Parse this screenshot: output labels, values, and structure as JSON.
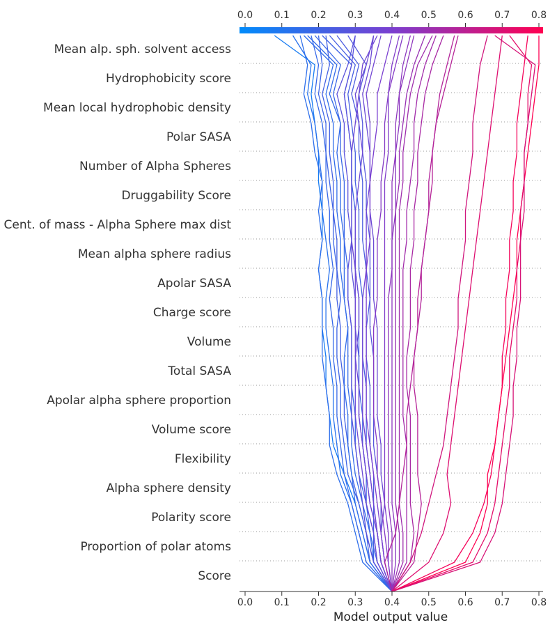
{
  "chart_data": {
    "type": "line",
    "xlabel": "Model output value",
    "xlim": [
      0.0,
      0.8
    ],
    "x_ticks": [
      "0.0",
      "0.1",
      "0.2",
      "0.3",
      "0.4",
      "0.5",
      "0.6",
      "0.7",
      "0.8"
    ],
    "features": [
      "Mean alp. sph. solvent access",
      "Hydrophobicity score",
      "Mean local hydrophobic density",
      "Polar SASA",
      "Number of Alpha Spheres",
      "Druggability Score",
      "Cent. of mass - Alpha Sphere max dist",
      "Mean alpha sphere radius",
      "Apolar SASA",
      "Charge score",
      "Volume",
      "Total SASA",
      "Apolar alpha sphere proportion",
      "Volume score",
      "Flexibility",
      "Alpha sphere density",
      "Polarity score",
      "Proportion of polar atoms",
      "Score"
    ],
    "base_value": 0.4,
    "colormap": [
      "#008bfb",
      "#ff0051"
    ],
    "grid": true,
    "series_note": "bottom-to-top cumulative model output (base at Score row end)",
    "series": [
      {
        "values": [
          0.4,
          0.34,
          0.32,
          0.3,
          0.27,
          0.24,
          0.23,
          0.22,
          0.22,
          0.21,
          0.21,
          0.2,
          0.21,
          0.21,
          0.2,
          0.2,
          0.19,
          0.18,
          0.19,
          0.08
        ]
      },
      {
        "values": [
          0.4,
          0.33,
          0.31,
          0.29,
          0.26,
          0.25,
          0.24,
          0.24,
          0.23,
          0.22,
          0.22,
          0.23,
          0.22,
          0.21,
          0.21,
          0.2,
          0.19,
          0.17,
          0.18,
          0.13
        ]
      },
      {
        "values": [
          0.4,
          0.32,
          0.3,
          0.28,
          0.25,
          0.23,
          0.23,
          0.22,
          0.21,
          0.21,
          0.21,
          0.2,
          0.21,
          0.2,
          0.21,
          0.19,
          0.18,
          0.16,
          0.17,
          0.15
        ]
      },
      {
        "values": [
          0.4,
          0.33,
          0.31,
          0.29,
          0.27,
          0.26,
          0.25,
          0.25,
          0.24,
          0.24,
          0.23,
          0.24,
          0.23,
          0.23,
          0.22,
          0.22,
          0.21,
          0.19,
          0.2,
          0.18
        ]
      },
      {
        "values": [
          0.4,
          0.35,
          0.33,
          0.31,
          0.28,
          0.27,
          0.26,
          0.26,
          0.25,
          0.25,
          0.26,
          0.25,
          0.24,
          0.24,
          0.23,
          0.22,
          0.22,
          0.2,
          0.21,
          0.2
        ]
      },
      {
        "values": [
          0.4,
          0.34,
          0.33,
          0.31,
          0.29,
          0.28,
          0.27,
          0.27,
          0.26,
          0.26,
          0.25,
          0.25,
          0.25,
          0.24,
          0.24,
          0.23,
          0.23,
          0.21,
          0.23,
          0.22
        ]
      },
      {
        "values": [
          0.4,
          0.34,
          0.32,
          0.3,
          0.29,
          0.28,
          0.28,
          0.27,
          0.27,
          0.28,
          0.27,
          0.26,
          0.26,
          0.25,
          0.25,
          0.24,
          0.24,
          0.22,
          0.24,
          0.16
        ]
      },
      {
        "values": [
          0.4,
          0.35,
          0.34,
          0.32,
          0.3,
          0.29,
          0.29,
          0.28,
          0.28,
          0.28,
          0.27,
          0.27,
          0.27,
          0.26,
          0.26,
          0.25,
          0.26,
          0.23,
          0.25,
          0.17
        ]
      },
      {
        "values": [
          0.4,
          0.36,
          0.34,
          0.33,
          0.31,
          0.3,
          0.3,
          0.29,
          0.29,
          0.29,
          0.28,
          0.28,
          0.27,
          0.27,
          0.27,
          0.26,
          0.26,
          0.24,
          0.26,
          0.19
        ]
      },
      {
        "values": [
          0.4,
          0.37,
          0.36,
          0.34,
          0.33,
          0.32,
          0.31,
          0.31,
          0.31,
          0.3,
          0.3,
          0.29,
          0.29,
          0.28,
          0.28,
          0.27,
          0.27,
          0.25,
          0.28,
          0.3
        ]
      },
      {
        "values": [
          0.4,
          0.35,
          0.35,
          0.33,
          0.33,
          0.32,
          0.32,
          0.31,
          0.31,
          0.31,
          0.31,
          0.3,
          0.3,
          0.3,
          0.29,
          0.29,
          0.28,
          0.27,
          0.29,
          0.21
        ]
      },
      {
        "values": [
          0.4,
          0.36,
          0.35,
          0.35,
          0.34,
          0.33,
          0.33,
          0.33,
          0.32,
          0.32,
          0.32,
          0.31,
          0.31,
          0.31,
          0.3,
          0.3,
          0.29,
          0.28,
          0.3,
          0.23
        ]
      },
      {
        "values": [
          0.4,
          0.37,
          0.36,
          0.35,
          0.35,
          0.34,
          0.34,
          0.34,
          0.33,
          0.33,
          0.34,
          0.33,
          0.32,
          0.32,
          0.32,
          0.31,
          0.31,
          0.29,
          0.31,
          0.25
        ]
      },
      {
        "values": [
          0.4,
          0.38,
          0.37,
          0.37,
          0.36,
          0.35,
          0.35,
          0.35,
          0.35,
          0.34,
          0.34,
          0.34,
          0.34,
          0.33,
          0.33,
          0.32,
          0.32,
          0.31,
          0.33,
          0.28
        ]
      },
      {
        "values": [
          0.4,
          0.38,
          0.37,
          0.38,
          0.37,
          0.37,
          0.36,
          0.36,
          0.36,
          0.36,
          0.35,
          0.35,
          0.35,
          0.34,
          0.34,
          0.34,
          0.33,
          0.32,
          0.34,
          0.35
        ]
      },
      {
        "values": [
          0.4,
          0.37,
          0.36,
          0.34,
          0.33,
          0.32,
          0.31,
          0.31,
          0.3,
          0.3,
          0.3,
          0.3,
          0.29,
          0.29,
          0.29,
          0.29,
          0.3,
          0.31,
          0.32,
          0.36
        ]
      },
      {
        "values": [
          0.4,
          0.35,
          0.33,
          0.32,
          0.31,
          0.3,
          0.29,
          0.29,
          0.29,
          0.29,
          0.28,
          0.28,
          0.29,
          0.29,
          0.29,
          0.29,
          0.28,
          0.27,
          0.29,
          0.3
        ]
      },
      {
        "values": [
          0.4,
          0.36,
          0.35,
          0.33,
          0.32,
          0.31,
          0.3,
          0.3,
          0.3,
          0.31,
          0.31,
          0.3,
          0.3,
          0.3,
          0.31,
          0.32,
          0.31,
          0.3,
          0.33,
          0.35
        ]
      },
      {
        "values": [
          0.4,
          0.37,
          0.36,
          0.35,
          0.34,
          0.33,
          0.32,
          0.32,
          0.32,
          0.32,
          0.32,
          0.33,
          0.33,
          0.33,
          0.34,
          0.34,
          0.34,
          0.33,
          0.35,
          0.37
        ]
      },
      {
        "values": [
          0.4,
          0.38,
          0.37,
          0.36,
          0.35,
          0.34,
          0.33,
          0.33,
          0.33,
          0.33,
          0.33,
          0.33,
          0.34,
          0.34,
          0.34,
          0.35,
          0.36,
          0.36,
          0.38,
          0.4
        ]
      },
      {
        "values": [
          0.4,
          0.39,
          0.38,
          0.37,
          0.36,
          0.36,
          0.35,
          0.35,
          0.35,
          0.35,
          0.36,
          0.36,
          0.36,
          0.37,
          0.37,
          0.38,
          0.38,
          0.39,
          0.41,
          0.43
        ]
      },
      {
        "values": [
          0.4,
          0.39,
          0.39,
          0.38,
          0.38,
          0.38,
          0.38,
          0.38,
          0.38,
          0.38,
          0.38,
          0.38,
          0.38,
          0.38,
          0.38,
          0.39,
          0.39,
          0.39,
          0.4,
          0.42
        ]
      },
      {
        "values": [
          0.4,
          0.4,
          0.4,
          0.39,
          0.39,
          0.39,
          0.39,
          0.39,
          0.39,
          0.39,
          0.39,
          0.4,
          0.4,
          0.4,
          0.4,
          0.41,
          0.41,
          0.42,
          0.44,
          0.46
        ]
      },
      {
        "values": [
          0.4,
          0.41,
          0.41,
          0.4,
          0.4,
          0.4,
          0.4,
          0.4,
          0.4,
          0.4,
          0.4,
          0.4,
          0.4,
          0.41,
          0.41,
          0.41,
          0.42,
          0.42,
          0.43,
          0.45
        ]
      },
      {
        "values": [
          0.4,
          0.42,
          0.42,
          0.41,
          0.41,
          0.41,
          0.41,
          0.41,
          0.41,
          0.41,
          0.41,
          0.41,
          0.41,
          0.41,
          0.42,
          0.42,
          0.43,
          0.44,
          0.46,
          0.49
        ]
      },
      {
        "values": [
          0.4,
          0.43,
          0.43,
          0.42,
          0.42,
          0.42,
          0.42,
          0.42,
          0.42,
          0.42,
          0.42,
          0.42,
          0.42,
          0.42,
          0.43,
          0.43,
          0.44,
          0.45,
          0.47,
          0.51
        ]
      },
      {
        "values": [
          0.4,
          0.44,
          0.44,
          0.44,
          0.44,
          0.44,
          0.43,
          0.43,
          0.43,
          0.43,
          0.43,
          0.43,
          0.44,
          0.44,
          0.45,
          0.46,
          0.46,
          0.47,
          0.49,
          0.52
        ]
      },
      {
        "values": [
          0.4,
          0.45,
          0.46,
          0.45,
          0.45,
          0.45,
          0.45,
          0.44,
          0.44,
          0.45,
          0.45,
          0.45,
          0.46,
          0.46,
          0.47,
          0.47,
          0.48,
          0.49,
          0.51,
          0.54
        ]
      },
      {
        "values": [
          0.4,
          0.46,
          0.47,
          0.48,
          0.47,
          0.47,
          0.47,
          0.46,
          0.46,
          0.47,
          0.47,
          0.48,
          0.49,
          0.5,
          0.51,
          0.51,
          0.52,
          0.54,
          0.56,
          0.58
        ]
      },
      {
        "values": [
          0.4,
          0.38,
          0.41,
          0.42,
          0.43,
          0.44,
          0.44,
          0.45,
          0.46,
          0.47,
          0.48,
          0.48,
          0.49,
          0.5,
          0.5,
          0.51,
          0.52,
          0.53,
          0.55,
          0.57
        ]
      },
      {
        "values": [
          0.4,
          0.45,
          0.48,
          0.5,
          0.52,
          0.54,
          0.55,
          0.56,
          0.57,
          0.58,
          0.58,
          0.59,
          0.6,
          0.6,
          0.61,
          0.62,
          0.62,
          0.63,
          0.64,
          0.66
        ]
      },
      {
        "values": [
          0.4,
          0.5,
          0.54,
          0.56,
          0.55,
          0.56,
          0.57,
          0.58,
          0.59,
          0.6,
          0.61,
          0.62,
          0.63,
          0.64,
          0.65,
          0.66,
          0.67,
          0.68,
          0.69,
          0.7
        ]
      },
      {
        "values": [
          0.4,
          0.57,
          0.62,
          0.65,
          0.67,
          0.68,
          0.69,
          0.7,
          0.7,
          0.71,
          0.71,
          0.72,
          0.72,
          0.73,
          0.73,
          0.74,
          0.74,
          0.75,
          0.76,
          0.77
        ]
      },
      {
        "values": [
          0.4,
          0.6,
          0.64,
          0.66,
          0.66,
          0.68,
          0.69,
          0.7,
          0.71,
          0.72,
          0.73,
          0.74,
          0.74,
          0.75,
          0.76,
          0.77,
          0.78,
          0.79,
          0.8,
          0.8
        ]
      },
      {
        "values": [
          0.4,
          0.62,
          0.66,
          0.68,
          0.69,
          0.7,
          0.71,
          0.72,
          0.72,
          0.73,
          0.74,
          0.74,
          0.75,
          0.75,
          0.76,
          0.76,
          0.77,
          0.77,
          0.78,
          0.72
        ]
      },
      {
        "values": [
          0.4,
          0.64,
          0.68,
          0.7,
          0.71,
          0.72,
          0.73,
          0.73,
          0.74,
          0.74,
          0.75,
          0.75,
          0.75,
          0.76,
          0.76,
          0.76,
          0.77,
          0.78,
          0.79,
          0.68
        ]
      }
    ]
  }
}
